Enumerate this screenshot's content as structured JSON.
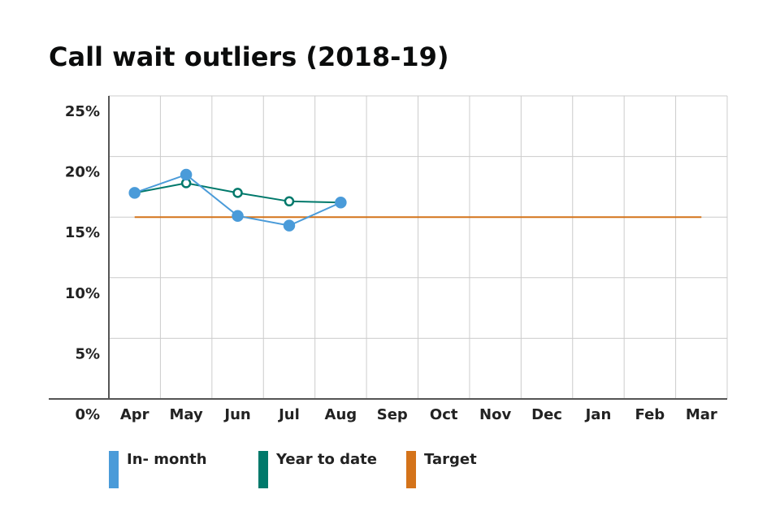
{
  "chart_data": {
    "type": "line",
    "title": "Call wait outliers (2018-19)",
    "categories": [
      "Apr",
      "May",
      "Jun",
      "Jul",
      "Aug",
      "Sep",
      "Oct",
      "Nov",
      "Dec",
      "Jan",
      "Feb",
      "Mar"
    ],
    "series": [
      {
        "name": "In- month",
        "color": "#4a9bd9",
        "marker": "filled",
        "values": [
          17.0,
          18.5,
          15.1,
          14.3,
          16.2,
          null,
          null,
          null,
          null,
          null,
          null,
          null
        ]
      },
      {
        "name": "Year to date",
        "color": "#00796b",
        "marker": "hollow",
        "values": [
          17.0,
          17.8,
          17.0,
          16.3,
          16.2,
          null,
          null,
          null,
          null,
          null,
          null,
          null
        ]
      },
      {
        "name": "Target",
        "color": "#d4731a",
        "marker": "none",
        "values": [
          15,
          15,
          15,
          15,
          15,
          15,
          15,
          15,
          15,
          15,
          15,
          15
        ]
      }
    ],
    "ylim": [
      0,
      25
    ],
    "yticks": [
      {
        "value": 0,
        "label": "0%"
      },
      {
        "value": 5,
        "label": "5%"
      },
      {
        "value": 10,
        "label": "10%"
      },
      {
        "value": 15,
        "label": "15%"
      },
      {
        "value": 20,
        "label": "20%"
      },
      {
        "value": 25,
        "label": "25%"
      }
    ],
    "grid": true
  }
}
